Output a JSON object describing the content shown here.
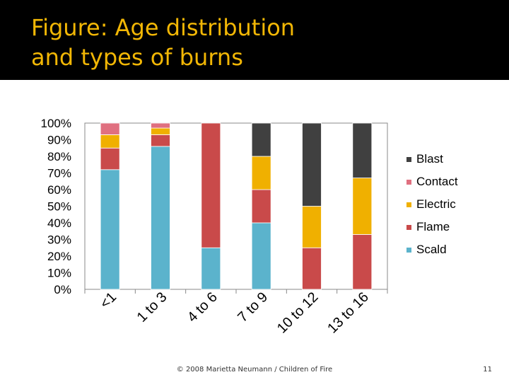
{
  "slide": {
    "title_line1": "Figure: Age distribution",
    "title_line2": "and types of burns",
    "footer": "© 2008 Marietta Neumann / Children of Fire",
    "page_number": "11"
  },
  "chart_data": {
    "type": "bar",
    "stacked": true,
    "percent": true,
    "categories": [
      "<1",
      "1 to 3",
      "4 to 6",
      "7 to 9",
      "10 to 12",
      "13 to 16"
    ],
    "ylim": [
      0,
      100
    ],
    "yticks": [
      "0%",
      "10%",
      "20%",
      "30%",
      "40%",
      "50%",
      "60%",
      "70%",
      "80%",
      "90%",
      "100%"
    ],
    "legend_position": "right",
    "grid": false,
    "series": [
      {
        "name": "Scald",
        "color": "#5bb3cc",
        "values": [
          72,
          86,
          25,
          40,
          0,
          0
        ]
      },
      {
        "name": "Flame",
        "color": "#c94a4a",
        "values": [
          13,
          7,
          75,
          20,
          25,
          33
        ]
      },
      {
        "name": "Electric",
        "color": "#f0b000",
        "values": [
          8,
          4,
          0,
          20,
          25,
          34
        ]
      },
      {
        "name": "Contact",
        "color": "#e07080",
        "values": [
          7,
          3,
          0,
          0,
          0,
          0
        ]
      },
      {
        "name": "Blast",
        "color": "#404040",
        "values": [
          0,
          0,
          0,
          20,
          50,
          33
        ]
      }
    ],
    "legend_order": [
      "Blast",
      "Contact",
      "Electric",
      "Flame",
      "Scald"
    ]
  }
}
